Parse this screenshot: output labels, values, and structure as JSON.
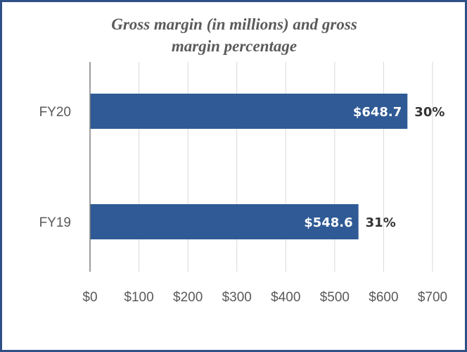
{
  "chart_data": {
    "type": "bar",
    "orientation": "horizontal",
    "title": "Gross margin (in millions) and gross margin percentage",
    "title_lines": [
      "Gross margin (in millions) and gross",
      "margin percentage"
    ],
    "categories": [
      "FY20",
      "FY19"
    ],
    "series": [
      {
        "values": [
          648.7,
          548.6
        ],
        "value_labels": [
          "$648.7",
          "$548.6"
        ],
        "percent_labels": [
          "30%",
          "31%"
        ]
      }
    ],
    "xlim": [
      0,
      700
    ],
    "x_ticks": [
      0,
      100,
      200,
      300,
      400,
      500,
      600,
      700
    ],
    "x_tick_labels": [
      "$0",
      "$100",
      "$200",
      "$300",
      "$400",
      "$500",
      "$600",
      "$700"
    ],
    "grid": true,
    "legend": "none",
    "colors": {
      "bar": "#2f5a95",
      "grid": "#d9d9d9",
      "axis": "#7f7f7f",
      "frame": "#2f4f86"
    }
  }
}
